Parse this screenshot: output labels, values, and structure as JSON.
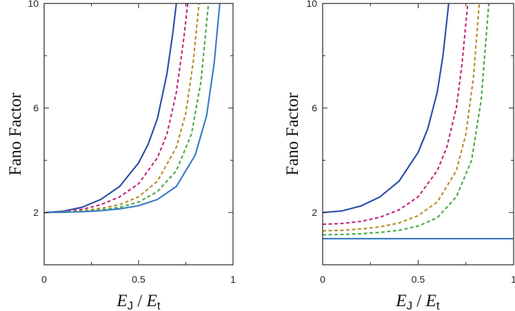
{
  "chart_data": [
    {
      "type": "line",
      "panel": "left",
      "xlabel": "E_J / E_t",
      "xlabel_parts": {
        "main": "E",
        "sub1": "J",
        "sep": " / ",
        "main2": "E",
        "sub2": "t"
      },
      "ylabel": "Fano Factor",
      "xlim": [
        0,
        1
      ],
      "ylim": [
        0,
        10
      ],
      "xticks": [
        0,
        0.5,
        1
      ],
      "xtick_labels": [
        "0",
        "0.5",
        "1"
      ],
      "yticks": [
        2,
        6,
        10
      ],
      "ytick_labels": [
        "2",
        "6",
        "10"
      ],
      "series": [
        {
          "name": "solid-blue-dark",
          "color": "#2b4fa8",
          "dash": "solid",
          "x": [
            0,
            0.1,
            0.2,
            0.3,
            0.4,
            0.5,
            0.55,
            0.6,
            0.65,
            0.68,
            0.7
          ],
          "y": [
            2.0,
            2.05,
            2.2,
            2.5,
            3.0,
            3.9,
            4.6,
            5.6,
            7.3,
            8.8,
            10.0
          ]
        },
        {
          "name": "dashed-magenta",
          "color": "#c2287e",
          "dash": "dashed",
          "x": [
            0,
            0.1,
            0.2,
            0.3,
            0.4,
            0.5,
            0.6,
            0.65,
            0.7,
            0.74,
            0.76
          ],
          "y": [
            2.0,
            2.03,
            2.12,
            2.3,
            2.6,
            3.1,
            4.1,
            5.0,
            6.6,
            8.7,
            10.0
          ]
        },
        {
          "name": "dashed-olive",
          "color": "#b5902a",
          "dash": "dashed",
          "x": [
            0,
            0.1,
            0.2,
            0.3,
            0.4,
            0.5,
            0.6,
            0.7,
            0.75,
            0.79,
            0.82
          ],
          "y": [
            2.0,
            2.02,
            2.07,
            2.16,
            2.3,
            2.6,
            3.2,
            4.5,
            5.8,
            7.8,
            10.0
          ]
        },
        {
          "name": "dashed-green",
          "color": "#4aaa46",
          "dash": "dashed",
          "x": [
            0,
            0.1,
            0.2,
            0.3,
            0.4,
            0.5,
            0.6,
            0.7,
            0.78,
            0.83,
            0.87
          ],
          "y": [
            2.0,
            2.01,
            2.04,
            2.1,
            2.2,
            2.4,
            2.8,
            3.6,
            5.0,
            7.0,
            10.0
          ]
        },
        {
          "name": "solid-blue-light",
          "color": "#3a7cc4",
          "dash": "solid",
          "x": [
            0,
            0.1,
            0.2,
            0.3,
            0.4,
            0.5,
            0.6,
            0.7,
            0.8,
            0.86,
            0.9,
            0.93
          ],
          "y": [
            2.0,
            2.01,
            2.03,
            2.07,
            2.14,
            2.26,
            2.5,
            3.0,
            4.2,
            5.7,
            7.7,
            10.0
          ]
        }
      ]
    },
    {
      "type": "line",
      "panel": "right",
      "xlabel": "E_J / E_t",
      "xlabel_parts": {
        "main": "E",
        "sub1": "J",
        "sep": " / ",
        "main2": "E",
        "sub2": "t"
      },
      "ylabel": "Fano Factor",
      "xlim": [
        0,
        1
      ],
      "ylim": [
        0,
        10
      ],
      "xticks": [
        0,
        0.5,
        1
      ],
      "xtick_labels": [
        "0",
        "0.5",
        "1"
      ],
      "yticks": [
        2,
        6,
        10
      ],
      "ytick_labels": [
        "2",
        "6",
        "10"
      ],
      "series": [
        {
          "name": "solid-blue-dark",
          "color": "#2b4fa8",
          "dash": "solid",
          "x": [
            0,
            0.1,
            0.2,
            0.3,
            0.4,
            0.5,
            0.55,
            0.6,
            0.63,
            0.66
          ],
          "y": [
            2.0,
            2.06,
            2.25,
            2.6,
            3.2,
            4.3,
            5.2,
            6.6,
            8.0,
            10.0
          ]
        },
        {
          "name": "dashed-magenta",
          "color": "#c2287e",
          "dash": "dashed",
          "x": [
            0,
            0.1,
            0.2,
            0.3,
            0.4,
            0.5,
            0.6,
            0.65,
            0.7,
            0.73,
            0.76
          ],
          "y": [
            1.55,
            1.58,
            1.66,
            1.82,
            2.1,
            2.6,
            3.6,
            4.5,
            6.0,
            7.7,
            10.0
          ]
        },
        {
          "name": "dashed-olive",
          "color": "#b5902a",
          "dash": "dashed",
          "x": [
            0,
            0.1,
            0.2,
            0.3,
            0.4,
            0.5,
            0.6,
            0.7,
            0.75,
            0.79,
            0.82
          ],
          "y": [
            1.3,
            1.32,
            1.37,
            1.45,
            1.6,
            1.88,
            2.4,
            3.6,
            5.0,
            7.2,
            10.0
          ]
        },
        {
          "name": "dashed-green",
          "color": "#4aaa46",
          "dash": "dashed",
          "x": [
            0,
            0.1,
            0.2,
            0.3,
            0.4,
            0.5,
            0.6,
            0.7,
            0.78,
            0.83,
            0.87
          ],
          "y": [
            1.15,
            1.16,
            1.19,
            1.24,
            1.32,
            1.48,
            1.8,
            2.6,
            4.0,
            6.3,
            10.0
          ]
        },
        {
          "name": "solid-blue-light",
          "color": "#3a7cc4",
          "dash": "solid",
          "x": [
            0,
            1
          ],
          "y": [
            1.0,
            1.0
          ]
        }
      ]
    }
  ]
}
